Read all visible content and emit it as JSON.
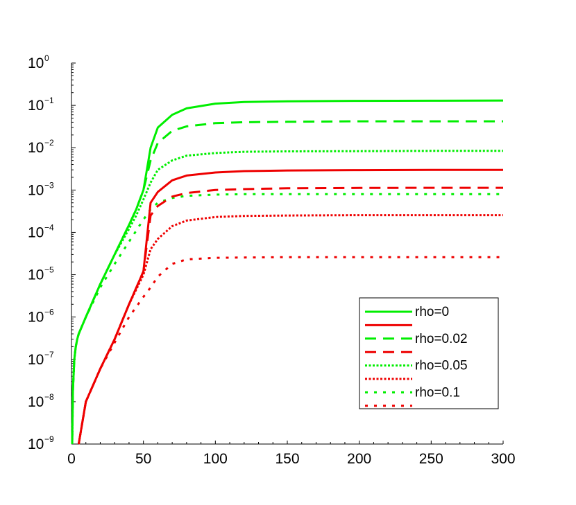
{
  "chart_data": {
    "type": "line",
    "title": "",
    "xlabel": "",
    "ylabel": "",
    "xlim": [
      0,
      300
    ],
    "y_scale": "log",
    "ylim": [
      1e-09,
      1
    ],
    "x_ticks": [
      0,
      50,
      100,
      150,
      200,
      250,
      300
    ],
    "x_tick_labels": [
      "0",
      "50",
      "100",
      "150",
      "200",
      "250",
      "300"
    ],
    "y_ticks": [
      {
        "base": "10",
        "exp": "0",
        "value": 1
      },
      {
        "base": "10",
        "exp": "−1",
        "value": 0.1
      },
      {
        "base": "10",
        "exp": "−2",
        "value": 0.01
      },
      {
        "base": "10",
        "exp": "−3",
        "value": 0.001
      },
      {
        "base": "10",
        "exp": "−4",
        "value": 0.0001
      },
      {
        "base": "10",
        "exp": "−5",
        "value": 1e-05
      },
      {
        "base": "10",
        "exp": "−6",
        "value": 1e-06
      },
      {
        "base": "10",
        "exp": "−7",
        "value": 1e-07
      },
      {
        "base": "10",
        "exp": "−8",
        "value": 1e-08
      },
      {
        "base": "10",
        "exp": "−9",
        "value": 1e-09
      }
    ],
    "legend": {
      "placement": "lower-right",
      "entries": [
        {
          "label": "rho=0",
          "color": "#00ee00",
          "dash": "solid"
        },
        {
          "label": "",
          "color": "#ee0000",
          "dash": "solid"
        },
        {
          "label": "rho=0.02",
          "color": "#00ee00",
          "dash": "dash"
        },
        {
          "label": "",
          "color": "#ee0000",
          "dash": "dash"
        },
        {
          "label": "rho=0.05",
          "color": "#00ee00",
          "dash": "dot"
        },
        {
          "label": "",
          "color": "#ee0000",
          "dash": "dot"
        },
        {
          "label": "rho=0.1",
          "color": "#00ee00",
          "dash": "sparse-dot"
        },
        {
          "label": "",
          "color": "#ee0000",
          "dash": "sparse-dot"
        }
      ]
    },
    "series": [
      {
        "color": "#00ee00",
        "dash": "solid",
        "x": [
          0.5,
          1,
          2,
          3,
          4,
          5,
          10,
          20,
          30,
          40,
          45,
          50,
          55,
          60,
          70,
          80,
          100,
          120,
          150,
          200,
          250,
          300
        ],
        "y": [
          1e-09,
          2e-08,
          1e-07,
          2e-07,
          3e-07,
          4e-07,
          1e-06,
          6e-06,
          3e-05,
          0.00015,
          0.00035,
          0.001,
          0.01,
          0.03,
          0.06,
          0.085,
          0.11,
          0.12,
          0.125,
          0.128,
          0.129,
          0.13
        ]
      },
      {
        "color": "#00ee00",
        "dash": "dash",
        "x": [
          0.5,
          1,
          2,
          3,
          4,
          5,
          10,
          20,
          30,
          40,
          45,
          50,
          55,
          60,
          70,
          80,
          100,
          120,
          150,
          200,
          250,
          300
        ],
        "y": [
          1e-09,
          2e-08,
          1e-07,
          2e-07,
          3e-07,
          4e-07,
          1e-06,
          6e-06,
          3e-05,
          0.00015,
          0.00035,
          0.001,
          0.005,
          0.013,
          0.025,
          0.032,
          0.038,
          0.04,
          0.041,
          0.042,
          0.042,
          0.042
        ]
      },
      {
        "color": "#00ee00",
        "dash": "dot",
        "x": [
          0.5,
          1,
          2,
          3,
          4,
          5,
          10,
          20,
          30,
          40,
          45,
          50,
          55,
          60,
          70,
          80,
          100,
          120,
          150,
          200,
          250,
          300
        ],
        "y": [
          1e-09,
          2e-08,
          1e-07,
          2e-07,
          3e-07,
          4e-07,
          1e-06,
          6e-06,
          3e-05,
          0.00012,
          0.00025,
          0.0006,
          0.0015,
          0.003,
          0.005,
          0.0065,
          0.0075,
          0.008,
          0.0082,
          0.0083,
          0.0084,
          0.0084
        ]
      },
      {
        "color": "#00ee00",
        "dash": "sparse-dot",
        "x": [
          0.5,
          1,
          2,
          3,
          4,
          5,
          10,
          20,
          30,
          40,
          45,
          50,
          55,
          60,
          70,
          80,
          100,
          120,
          150,
          200,
          250,
          300
        ],
        "y": [
          1e-09,
          2e-08,
          1e-07,
          2e-07,
          3e-07,
          4e-07,
          1e-06,
          5e-06,
          1.8e-05,
          6e-05,
          0.00011,
          0.0002,
          0.00035,
          0.0005,
          0.00065,
          0.00073,
          0.00078,
          0.0008,
          0.0008,
          0.0008,
          0.0008,
          0.0008
        ]
      },
      {
        "color": "#ee0000",
        "dash": "solid",
        "x": [
          5,
          10,
          20,
          30,
          40,
          50,
          55,
          60,
          70,
          80,
          100,
          120,
          150,
          200,
          250,
          300
        ],
        "y": [
          1e-09,
          1e-08,
          6e-08,
          3e-07,
          2e-06,
          1.2e-05,
          0.0005,
          0.0009,
          0.0017,
          0.0022,
          0.0026,
          0.0028,
          0.0029,
          0.00295,
          0.003,
          0.003
        ]
      },
      {
        "color": "#ee0000",
        "dash": "dash",
        "x": [
          5,
          10,
          20,
          30,
          40,
          50,
          55,
          60,
          70,
          80,
          100,
          120,
          150,
          200,
          250,
          300
        ],
        "y": [
          1e-09,
          1e-08,
          6e-08,
          3e-07,
          2e-06,
          1.2e-05,
          0.00025,
          0.00042,
          0.0007,
          0.00085,
          0.001,
          0.00105,
          0.0011,
          0.00112,
          0.00113,
          0.00113
        ]
      },
      {
        "color": "#ee0000",
        "dash": "dot",
        "x": [
          5,
          10,
          20,
          30,
          40,
          50,
          55,
          60,
          70,
          80,
          100,
          120,
          150,
          200,
          250,
          300
        ],
        "y": [
          1e-09,
          1e-08,
          6e-08,
          3e-07,
          2e-06,
          1e-05,
          4e-05,
          7e-05,
          0.00014,
          0.00019,
          0.00023,
          0.000245,
          0.00025,
          0.000255,
          0.000255,
          0.000255
        ]
      },
      {
        "color": "#ee0000",
        "dash": "sparse-dot",
        "x": [
          5,
          10,
          20,
          30,
          40,
          50,
          55,
          60,
          70,
          80,
          100,
          120,
          150,
          200,
          250,
          300
        ],
        "y": [
          1e-09,
          1e-08,
          6e-08,
          2.5e-07,
          1e-06,
          3e-06,
          5e-06,
          9e-06,
          1.8e-05,
          2.3e-05,
          2.5e-05,
          2.55e-05,
          2.6e-05,
          2.6e-05,
          2.6e-05,
          2.6e-05
        ]
      }
    ]
  }
}
